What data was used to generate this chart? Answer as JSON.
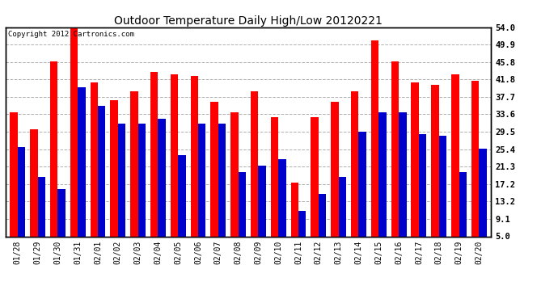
{
  "title": "Outdoor Temperature Daily High/Low 20120221",
  "copyright": "Copyright 2012 Cartronics.com",
  "dates": [
    "01/28",
    "01/29",
    "01/30",
    "01/31",
    "02/01",
    "02/02",
    "02/03",
    "02/04",
    "02/05",
    "02/06",
    "02/07",
    "02/08",
    "02/09",
    "02/10",
    "02/11",
    "02/12",
    "02/13",
    "02/14",
    "02/15",
    "02/16",
    "02/17",
    "02/18",
    "02/19",
    "02/20"
  ],
  "highs": [
    34.0,
    30.0,
    46.0,
    54.0,
    41.0,
    37.0,
    39.0,
    43.5,
    43.0,
    42.5,
    36.5,
    34.0,
    39.0,
    33.0,
    17.5,
    33.0,
    36.5,
    39.0,
    51.0,
    46.0,
    41.0,
    40.5,
    43.0,
    41.5
  ],
  "lows": [
    26.0,
    19.0,
    16.0,
    40.0,
    35.5,
    31.5,
    31.5,
    32.5,
    24.0,
    31.5,
    31.5,
    20.0,
    21.5,
    23.0,
    11.0,
    15.0,
    19.0,
    29.5,
    34.0,
    34.0,
    29.0,
    28.5,
    20.0,
    25.5
  ],
  "high_color": "#ff0000",
  "low_color": "#0000cc",
  "bg_color": "#ffffff",
  "grid_color": "#b0b0b0",
  "ytick_labels": [
    "5.0",
    "9.1",
    "13.2",
    "17.2",
    "21.3",
    "25.4",
    "29.5",
    "33.6",
    "37.7",
    "41.8",
    "45.8",
    "49.9",
    "54.0"
  ],
  "ytick_values": [
    5.0,
    9.1,
    13.2,
    17.2,
    21.3,
    25.4,
    29.5,
    33.6,
    37.7,
    41.8,
    45.8,
    49.9,
    54.0
  ],
  "ymin": 5.0,
  "ymax": 54.0,
  "bar_width": 0.38,
  "figwidth": 6.9,
  "figheight": 3.75,
  "dpi": 100
}
